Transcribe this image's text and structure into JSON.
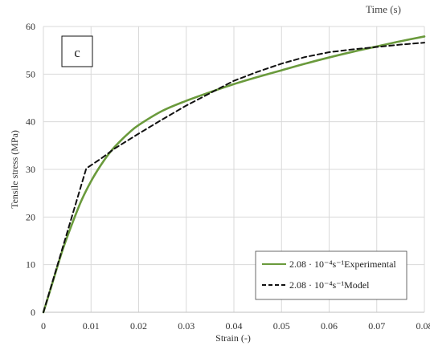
{
  "chart_data": {
    "type": "line",
    "panel_label": "c",
    "top_cut_text": "Time (s)",
    "xlabel": "Strain (-)",
    "ylabel": "Tensile stress (MPa)",
    "xlim": [
      0,
      0.08
    ],
    "ylim": [
      0,
      60
    ],
    "x_ticks": [
      "0",
      "0.01",
      "0.02",
      "0.03",
      "0.04",
      "0.05",
      "0.06",
      "0.07",
      "0.08"
    ],
    "y_ticks": [
      "0",
      "10",
      "20",
      "30",
      "40",
      "50",
      "60"
    ],
    "grid": true,
    "legend_position": "bottom-right",
    "series": [
      {
        "name": "2.08 · 10⁻⁴s⁻¹Experimental",
        "color": "#6a9a3c",
        "style": "solid",
        "x": [
          0,
          0.002,
          0.004,
          0.006,
          0.008,
          0.01,
          0.012,
          0.014,
          0.016,
          0.018,
          0.02,
          0.025,
          0.03,
          0.035,
          0.04,
          0.045,
          0.05,
          0.055,
          0.06,
          0.065,
          0.07,
          0.075,
          0.08
        ],
        "y": [
          0,
          6.5,
          13,
          18.5,
          23.5,
          27.5,
          30.8,
          33.6,
          35.8,
          37.7,
          39.3,
          42.3,
          44.4,
          46.2,
          47.9,
          49.4,
          50.8,
          52.2,
          53.5,
          54.7,
          55.8,
          56.9,
          57.9
        ]
      },
      {
        "name": "2.08 · 10⁻⁴s⁻¹Model",
        "color": "#111111",
        "style": "dashed",
        "x": [
          0,
          0.009,
          0.012,
          0.015,
          0.02,
          0.025,
          0.03,
          0.035,
          0.04,
          0.045,
          0.05,
          0.055,
          0.06,
          0.065,
          0.07,
          0.075,
          0.08
        ],
        "y": [
          0,
          30.2,
          32.2,
          34.4,
          37.5,
          40.5,
          43.4,
          46.0,
          48.6,
          50.5,
          52.2,
          53.6,
          54.6,
          55.2,
          55.7,
          56.2,
          56.6
        ]
      }
    ]
  }
}
